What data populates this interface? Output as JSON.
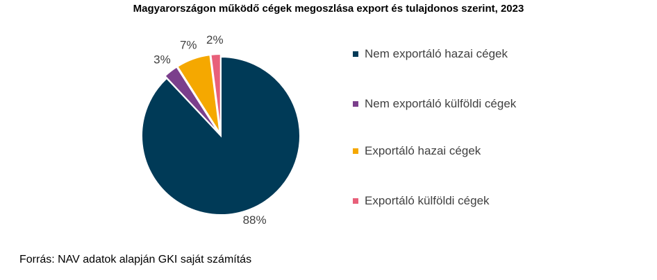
{
  "chart_data": {
    "type": "pie",
    "title": "Magyarországon működő cégek megoszlása export és tulajdonos szerint, 2023",
    "categories": [
      "Nem exportáló hazai cégek",
      "Nem exportáló külföldi cégek",
      "Exportáló hazai cégek",
      "Exportáló külföldi cégek"
    ],
    "values": [
      88,
      3,
      7,
      2
    ],
    "value_labels": [
      "88%",
      "3%",
      "7%",
      "2%"
    ],
    "colors": [
      "#003a57",
      "#7b3f8c",
      "#f5a800",
      "#e8607a"
    ],
    "legend_position": "right",
    "source": "Forrás: NAV adatok alapján GKI saját számítás"
  }
}
